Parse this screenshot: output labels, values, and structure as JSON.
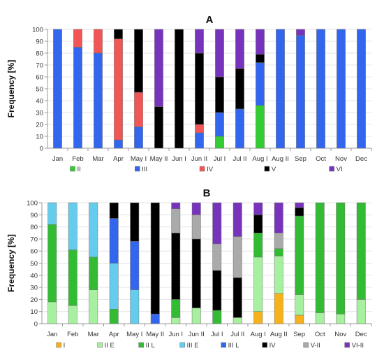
{
  "chart_data": [
    {
      "type": "bar",
      "stacked": true,
      "title": "A",
      "ylabel": "Frequency [%]",
      "ylim": [
        0,
        100
      ],
      "yticks": [
        0,
        10,
        20,
        30,
        40,
        50,
        60,
        70,
        80,
        90,
        100
      ],
      "categories": [
        "Jan",
        "Feb",
        "Mar",
        "Apr",
        "May I",
        "May II",
        "Jun I",
        "Jun II",
        "Jul I",
        "Jul II",
        "Aug I",
        "Aug II",
        "Sep",
        "Oct",
        "Nov",
        "Dec"
      ],
      "legend_position": "bottom",
      "series": [
        {
          "name": "II",
          "color": "#33cc33",
          "values": [
            0,
            0,
            0,
            0,
            0,
            0,
            0,
            0,
            10,
            0,
            36,
            0,
            0,
            0,
            0,
            0
          ]
        },
        {
          "name": "III",
          "color": "#3366ee",
          "values": [
            100,
            85,
            80,
            7,
            18,
            0,
            0,
            13,
            20,
            33,
            36,
            100,
            95,
            100,
            100,
            100
          ]
        },
        {
          "name": "IV",
          "color": "#f25555",
          "values": [
            0,
            15,
            20,
            85,
            29,
            0,
            0,
            7,
            0,
            0,
            0,
            0,
            0,
            0,
            0,
            0
          ]
        },
        {
          "name": "V",
          "color": "#000000",
          "values": [
            0,
            0,
            0,
            8,
            53,
            35,
            100,
            60,
            30,
            34,
            7,
            0,
            0,
            0,
            0,
            0
          ]
        },
        {
          "name": "VI",
          "color": "#7733bb",
          "values": [
            0,
            0,
            0,
            0,
            0,
            65,
            0,
            20,
            40,
            33,
            21,
            0,
            5,
            0,
            0,
            0
          ]
        }
      ]
    },
    {
      "type": "bar",
      "stacked": true,
      "title": "B",
      "ylabel": "Frequency [%]",
      "ylim": [
        0,
        100
      ],
      "yticks": [
        0,
        10,
        20,
        30,
        40,
        50,
        60,
        70,
        80,
        90,
        100
      ],
      "categories": [
        "Jan",
        "Feb",
        "Mar",
        "Apr",
        "May I",
        "May II",
        "Jun I",
        "Jun II",
        "Jul I",
        "Jul II",
        "Aug I",
        "Aug II",
        "Sep",
        "Oct",
        "Nov",
        "Dec"
      ],
      "legend_position": "bottom",
      "series": [
        {
          "name": "I",
          "color": "#f5b21a",
          "values": [
            0,
            0,
            0,
            0,
            0,
            0,
            0,
            0,
            0,
            0,
            10,
            25,
            7,
            0,
            0,
            0
          ]
        },
        {
          "name": "II E",
          "color": "#a6f0a0",
          "values": [
            18,
            15,
            28,
            0,
            0,
            0,
            5,
            13,
            0,
            5,
            45,
            31,
            17,
            9,
            8,
            20
          ]
        },
        {
          "name": "II L",
          "color": "#33bb33",
          "values": [
            64,
            46,
            27,
            12,
            0,
            0,
            15,
            0,
            11,
            0,
            20,
            6,
            65,
            91,
            92,
            80
          ]
        },
        {
          "name": "III E",
          "color": "#66ccee",
          "values": [
            18,
            39,
            45,
            38,
            28,
            0,
            0,
            0,
            0,
            0,
            0,
            0,
            0,
            0,
            0,
            0
          ]
        },
        {
          "name": "III L",
          "color": "#3366ee",
          "values": [
            0,
            0,
            0,
            37,
            40,
            8,
            0,
            0,
            0,
            0,
            0,
            0,
            0,
            0,
            0,
            0
          ]
        },
        {
          "name": "IV",
          "color": "#000000",
          "values": [
            0,
            0,
            0,
            13,
            32,
            92,
            55,
            57,
            33,
            33,
            15,
            0,
            7,
            0,
            0,
            0
          ]
        },
        {
          "name": "V-II",
          "color": "#aaaaaa",
          "values": [
            0,
            0,
            0,
            0,
            0,
            0,
            20,
            20,
            22,
            34,
            0,
            13,
            0,
            0,
            0,
            0
          ]
        },
        {
          "name": "VI-II",
          "color": "#7733bb",
          "values": [
            0,
            0,
            0,
            0,
            0,
            0,
            5,
            10,
            34,
            28,
            10,
            25,
            4,
            0,
            0,
            0
          ]
        }
      ]
    }
  ]
}
